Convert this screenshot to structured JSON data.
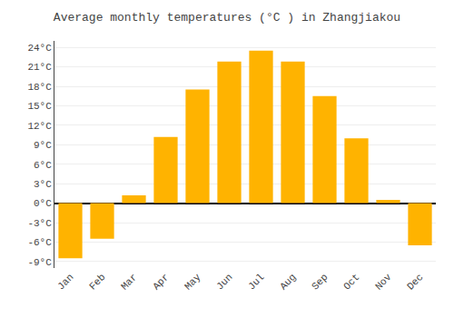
{
  "chart_data": {
    "type": "bar",
    "title": "Average monthly temperatures (°C ) in Zhangjiakou",
    "categories": [
      "Jan",
      "Feb",
      "Mar",
      "Apr",
      "May",
      "Jun",
      "Jul",
      "Aug",
      "Sep",
      "Oct",
      "Nov",
      "Dec"
    ],
    "values": [
      -8.5,
      -5.5,
      1.2,
      10.2,
      17.5,
      21.8,
      23.5,
      21.8,
      16.5,
      10.0,
      0.5,
      -6.5
    ],
    "color": "#FFB300",
    "ylim": [
      -10,
      25
    ],
    "yticks": [
      {
        "value": -9,
        "label": "-9°C"
      },
      {
        "value": -6,
        "label": "-6°C"
      },
      {
        "value": -3,
        "label": "-3°C"
      },
      {
        "value": 0,
        "label": "0°C"
      },
      {
        "value": 3,
        "label": "3°C"
      },
      {
        "value": 6,
        "label": "6°C"
      },
      {
        "value": 9,
        "label": "9°C"
      },
      {
        "value": 12,
        "label": "12°C"
      },
      {
        "value": 15,
        "label": "15°C"
      },
      {
        "value": 18,
        "label": "18°C"
      },
      {
        "value": 21,
        "label": "21°C"
      },
      {
        "value": 24,
        "label": "24°C"
      }
    ],
    "grid": true
  }
}
